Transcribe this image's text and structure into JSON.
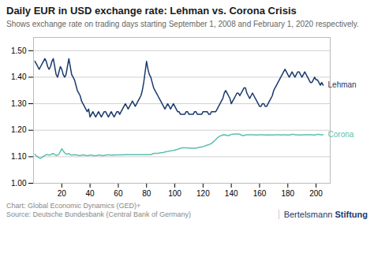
{
  "chart_data": {
    "type": "line",
    "title": "Daily EUR in USD exchange rate: Lehman vs. Corona Crisis",
    "subtitle": "Shows exchange rate on trading days starting September 1, 2008 and February 1, 2020 respectively.",
    "footer": [
      "Chart: Global Economic Dynamics (GED)+",
      "Source: Deutsche Bundesbank (Central Bank of Germany)"
    ],
    "logo": [
      "Bertelsmann",
      "Stiftung"
    ],
    "x": [
      1,
      2,
      3,
      4,
      5,
      6,
      7,
      8,
      9,
      10,
      11,
      12,
      13,
      14,
      15,
      16,
      17,
      18,
      19,
      20,
      21,
      22,
      23,
      24,
      25,
      26,
      27,
      28,
      29,
      30,
      31,
      32,
      33,
      34,
      35,
      36,
      37,
      38,
      39,
      40,
      41,
      42,
      43,
      44,
      45,
      46,
      47,
      48,
      49,
      50,
      51,
      52,
      53,
      54,
      55,
      56,
      57,
      58,
      59,
      60,
      61,
      62,
      63,
      64,
      65,
      66,
      67,
      68,
      69,
      70,
      71,
      72,
      73,
      74,
      75,
      76,
      77,
      78,
      79,
      80,
      81,
      82,
      83,
      84,
      85,
      86,
      87,
      88,
      89,
      90,
      91,
      92,
      93,
      94,
      95,
      96,
      97,
      98,
      99,
      100,
      101,
      102,
      103,
      104,
      105,
      106,
      107,
      108,
      109,
      110,
      111,
      112,
      113,
      114,
      115,
      116,
      117,
      118,
      119,
      120,
      121,
      122,
      123,
      124,
      125,
      126,
      127,
      128,
      129,
      130,
      131,
      132,
      133,
      134,
      135,
      136,
      137,
      138,
      139,
      140,
      141,
      142,
      143,
      144,
      145,
      146,
      147,
      148,
      149,
      150,
      151,
      152,
      153,
      154,
      155,
      156,
      157,
      158,
      159,
      160,
      161,
      162,
      163,
      164,
      165,
      166,
      167,
      168,
      169,
      170,
      171,
      172,
      173,
      174,
      175,
      176,
      177,
      178,
      179,
      180,
      181,
      182,
      183,
      184,
      185,
      186,
      187,
      188,
      189,
      190,
      191,
      192,
      193,
      194,
      195,
      196,
      197,
      198,
      199,
      200,
      201,
      202,
      203,
      204,
      205
    ],
    "series": [
      {
        "name": "Lehman",
        "color": "#1a3a6b",
        "values": [
          1.46,
          1.45,
          1.44,
          1.43,
          1.44,
          1.45,
          1.46,
          1.47,
          1.46,
          1.44,
          1.43,
          1.44,
          1.46,
          1.47,
          1.44,
          1.41,
          1.4,
          1.42,
          1.44,
          1.43,
          1.41,
          1.4,
          1.41,
          1.44,
          1.47,
          1.44,
          1.41,
          1.4,
          1.39,
          1.37,
          1.35,
          1.34,
          1.33,
          1.31,
          1.3,
          1.29,
          1.28,
          1.27,
          1.28,
          1.25,
          1.26,
          1.27,
          1.26,
          1.25,
          1.26,
          1.27,
          1.26,
          1.25,
          1.26,
          1.27,
          1.27,
          1.26,
          1.25,
          1.26,
          1.27,
          1.26,
          1.25,
          1.26,
          1.27,
          1.27,
          1.26,
          1.27,
          1.28,
          1.29,
          1.3,
          1.29,
          1.28,
          1.29,
          1.3,
          1.31,
          1.3,
          1.29,
          1.3,
          1.31,
          1.32,
          1.33,
          1.35,
          1.38,
          1.42,
          1.46,
          1.43,
          1.41,
          1.4,
          1.38,
          1.36,
          1.35,
          1.34,
          1.33,
          1.32,
          1.31,
          1.3,
          1.29,
          1.28,
          1.29,
          1.3,
          1.29,
          1.28,
          1.29,
          1.3,
          1.29,
          1.28,
          1.27,
          1.27,
          1.26,
          1.26,
          1.26,
          1.26,
          1.27,
          1.27,
          1.26,
          1.26,
          1.26,
          1.26,
          1.27,
          1.27,
          1.26,
          1.26,
          1.26,
          1.26,
          1.27,
          1.27,
          1.27,
          1.27,
          1.26,
          1.26,
          1.27,
          1.27,
          1.27,
          1.27,
          1.28,
          1.29,
          1.3,
          1.31,
          1.32,
          1.34,
          1.35,
          1.34,
          1.33,
          1.32,
          1.3,
          1.31,
          1.32,
          1.33,
          1.34,
          1.34,
          1.33,
          1.34,
          1.35,
          1.36,
          1.36,
          1.34,
          1.33,
          1.32,
          1.33,
          1.34,
          1.33,
          1.32,
          1.31,
          1.3,
          1.29,
          1.29,
          1.3,
          1.3,
          1.29,
          1.29,
          1.3,
          1.31,
          1.32,
          1.33,
          1.35,
          1.36,
          1.37,
          1.38,
          1.39,
          1.4,
          1.41,
          1.42,
          1.43,
          1.42,
          1.41,
          1.4,
          1.41,
          1.42,
          1.41,
          1.4,
          1.41,
          1.42,
          1.42,
          1.41,
          1.4,
          1.41,
          1.42,
          1.41,
          1.4,
          1.39,
          1.38,
          1.38,
          1.39,
          1.4,
          1.39,
          1.39,
          1.38,
          1.37,
          1.38,
          1.37
        ]
      },
      {
        "name": "Corona",
        "color": "#5bbfb0",
        "values": [
          1.109,
          1.103,
          1.1,
          1.095,
          1.094,
          1.098,
          1.102,
          1.104,
          1.108,
          1.108,
          1.106,
          1.108,
          1.11,
          1.112,
          1.108,
          1.105,
          1.106,
          1.11,
          1.12,
          1.13,
          1.122,
          1.115,
          1.11,
          1.11,
          1.112,
          1.108,
          1.106,
          1.107,
          1.108,
          1.107,
          1.106,
          1.105,
          1.104,
          1.106,
          1.107,
          1.106,
          1.105,
          1.104,
          1.105,
          1.106,
          1.106,
          1.105,
          1.104,
          1.104,
          1.105,
          1.106,
          1.106,
          1.105,
          1.104,
          1.105,
          1.106,
          1.107,
          1.107,
          1.107,
          1.106,
          1.106,
          1.106,
          1.107,
          1.107,
          1.107,
          1.107,
          1.107,
          1.107,
          1.108,
          1.108,
          1.108,
          1.108,
          1.108,
          1.108,
          1.108,
          1.108,
          1.108,
          1.108,
          1.108,
          1.108,
          1.108,
          1.108,
          1.108,
          1.108,
          1.108,
          1.108,
          1.108,
          1.108,
          1.11,
          1.112,
          1.113,
          1.113,
          1.113,
          1.114,
          1.115,
          1.115,
          1.116,
          1.118,
          1.119,
          1.12,
          1.121,
          1.122,
          1.123,
          1.124,
          1.125,
          1.127,
          1.128,
          1.13,
          1.132,
          1.133,
          1.134,
          1.134,
          1.134,
          1.133,
          1.133,
          1.132,
          1.132,
          1.132,
          1.132,
          1.132,
          1.134,
          1.135,
          1.136,
          1.137,
          1.138,
          1.14,
          1.142,
          1.144,
          1.145,
          1.148,
          1.15,
          1.155,
          1.16,
          1.165,
          1.17,
          1.175,
          1.178,
          1.18,
          1.182,
          1.183,
          1.182,
          1.18,
          1.18,
          1.182,
          1.184,
          1.185,
          1.185,
          1.186,
          1.186,
          1.186,
          1.185,
          1.182,
          1.18,
          1.18,
          1.182,
          1.183,
          1.183,
          1.183,
          1.183,
          1.183,
          1.183,
          1.182,
          1.182,
          1.182,
          1.183,
          1.183,
          1.183,
          1.182,
          1.182,
          1.182,
          1.183,
          1.182,
          1.182,
          1.182,
          1.182,
          1.183,
          1.183,
          1.183,
          1.183,
          1.182,
          1.182,
          1.183,
          1.183,
          1.182,
          1.182,
          1.182,
          1.183,
          1.184,
          1.184,
          1.183,
          1.183,
          1.182,
          1.182,
          1.182,
          1.182,
          1.183,
          1.183,
          1.183,
          1.183,
          1.183,
          1.183,
          1.183,
          1.182,
          1.182,
          1.183,
          1.184,
          1.184,
          1.183,
          1.183,
          1.183
        ]
      }
    ],
    "xlim": [
      0,
      210
    ],
    "xticks": [
      20,
      40,
      60,
      80,
      100,
      120,
      140,
      160,
      180,
      200
    ],
    "ylim": [
      1.0,
      1.55
    ],
    "yticks": [
      {
        "value": 1.0,
        "label": "1.00"
      },
      {
        "value": 1.1,
        "label": "1.10"
      },
      {
        "value": 1.2,
        "label": "1.20"
      },
      {
        "value": 1.3,
        "label": "1.30"
      },
      {
        "value": 1.4,
        "label": "1.40"
      },
      {
        "value": 1.5,
        "label": "1.50"
      }
    ],
    "grid": true
  }
}
